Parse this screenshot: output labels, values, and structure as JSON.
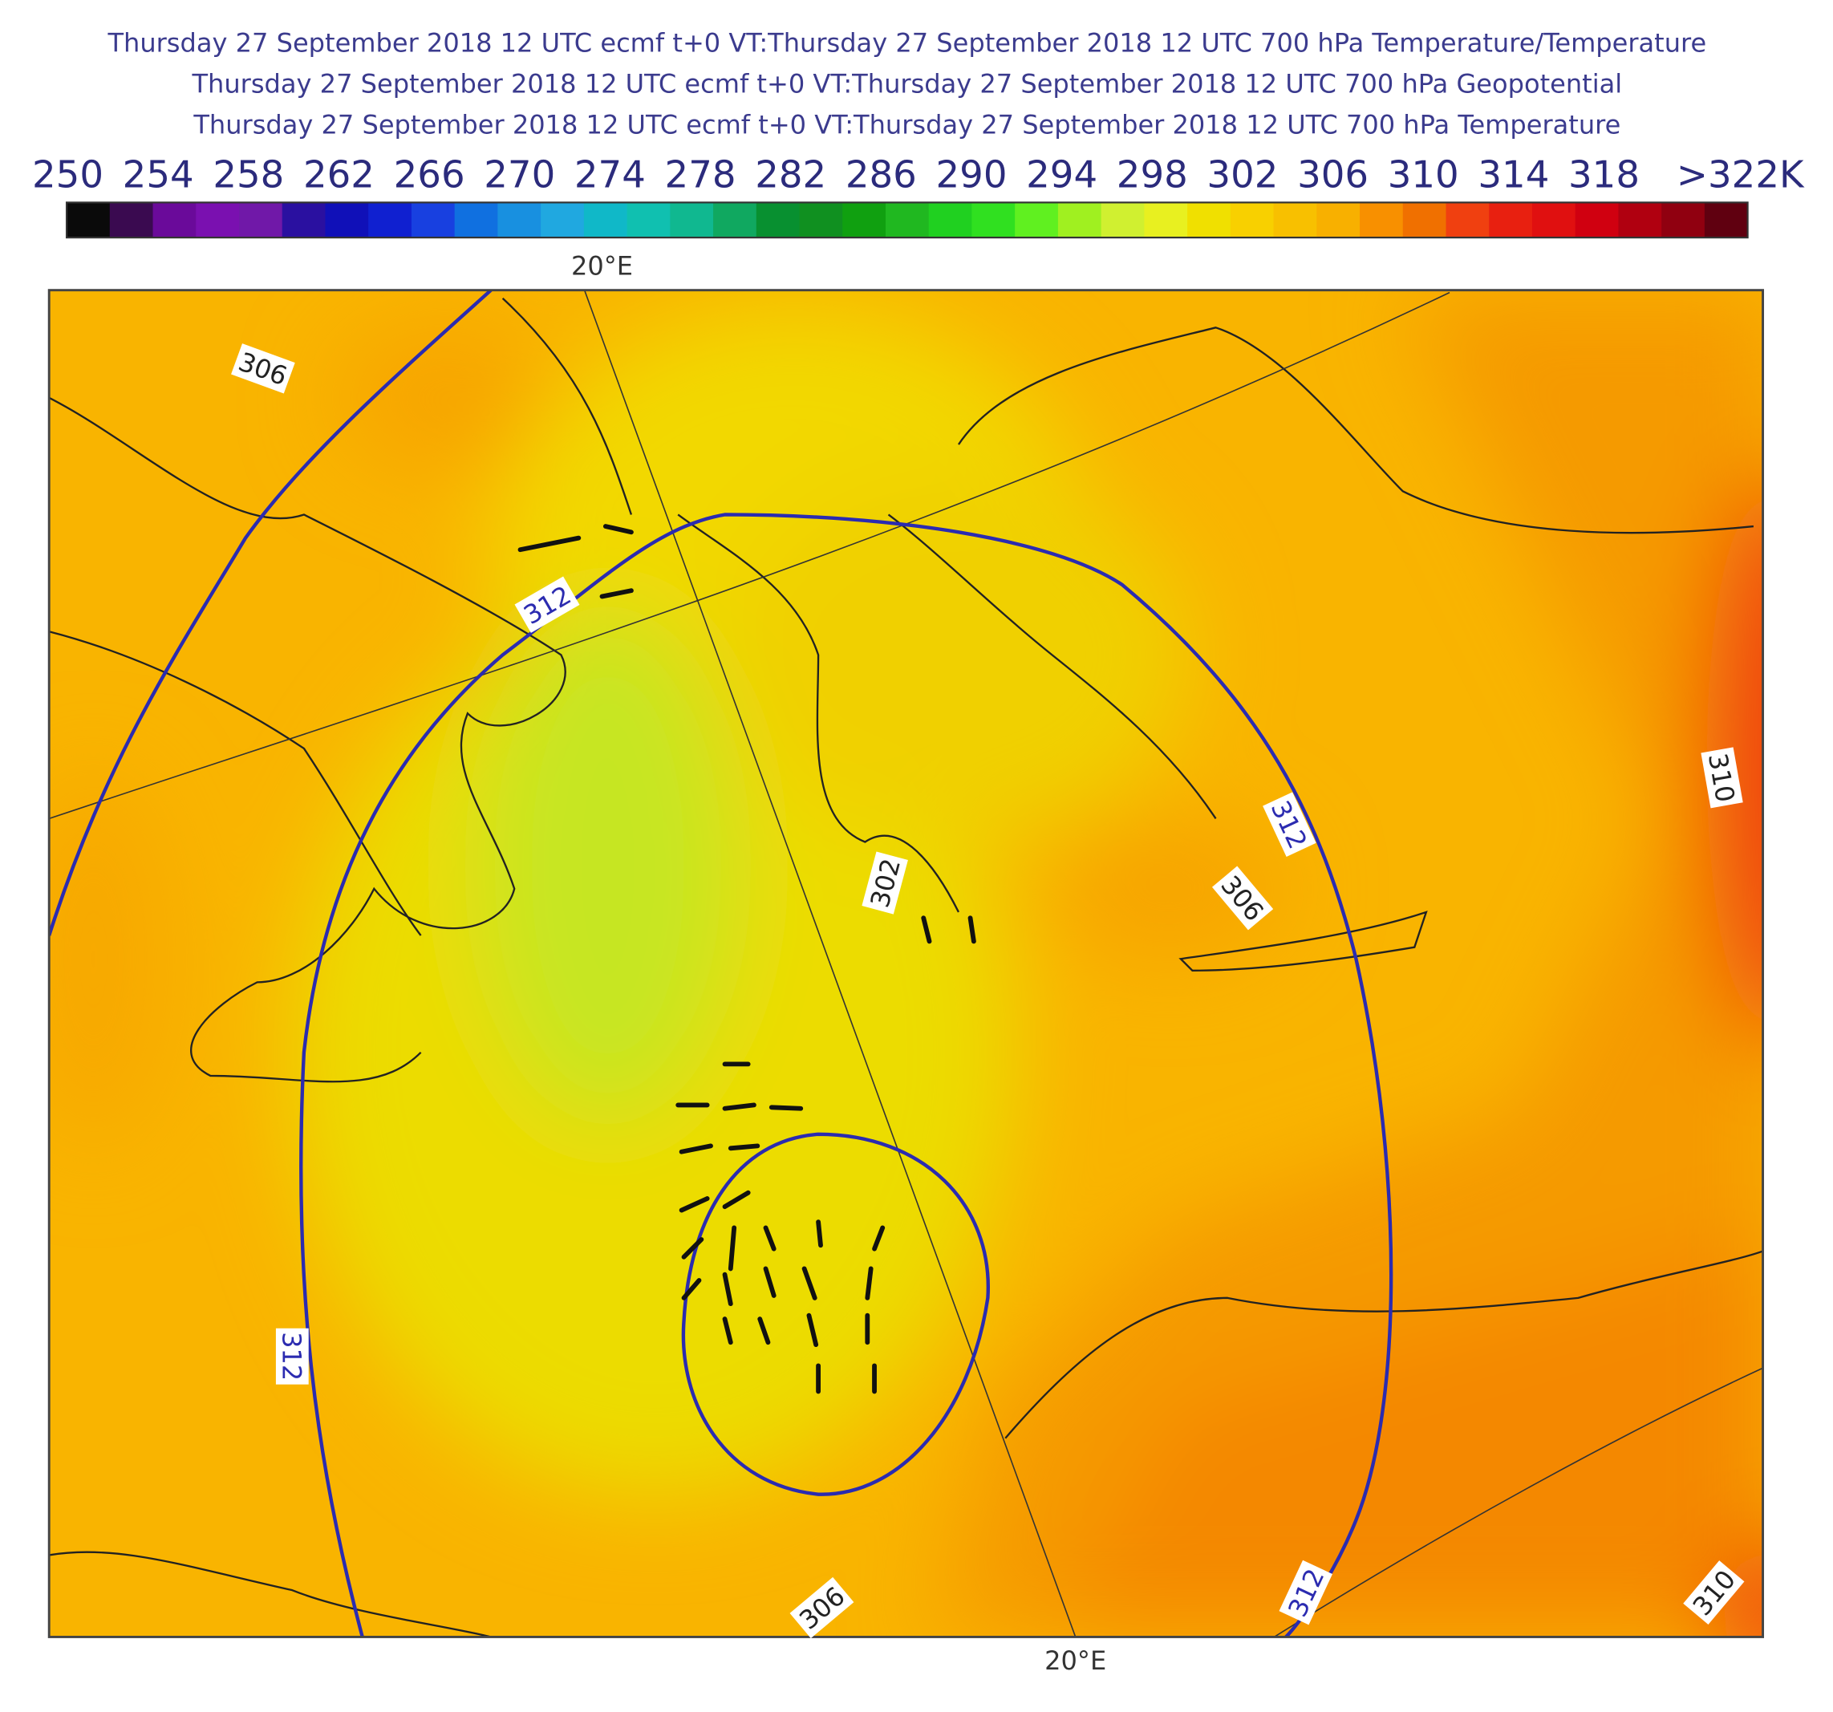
{
  "header": {
    "lines": [
      "Thursday 27 September 2018 12 UTC ecmf t+0 VT:Thursday 27 September 2018 12 UTC 700 hPa  Temperature/Temperature",
      "Thursday 27 September 2018 12 UTC ecmf t+0 VT:Thursday 27 September 2018 12 UTC 700 hPa  Geopotential",
      "Thursday 27 September 2018 12 UTC ecmf t+0 VT:Thursday 27 September 2018 12 UTC 700 hPa  Temperature"
    ]
  },
  "colorbar": {
    "labels": [
      "250",
      "254",
      "258",
      "262",
      "266",
      "270",
      "274",
      "278",
      "282",
      "286",
      "290",
      "294",
      "298",
      "302",
      "306",
      "310",
      "314",
      "318",
      ">322K"
    ],
    "colors": [
      "#0a0a0a",
      "#3a0a50",
      "#6a0a9a",
      "#7a10b0",
      "#7018a8",
      "#2a10a0",
      "#1010b8",
      "#1020d0",
      "#1840e0",
      "#1070e0",
      "#1890e0",
      "#20a8e0",
      "#10b8c8",
      "#10c0b0",
      "#10b890",
      "#10a860",
      "#089030",
      "#109020",
      "#10a010",
      "#20b820",
      "#20d020",
      "#30e020",
      "#60f020",
      "#a0f020",
      "#d0f030",
      "#e8f020",
      "#f0e000",
      "#f8d000",
      "#f8c000",
      "#f8b000",
      "#f89000",
      "#f07000",
      "#f04010",
      "#e82010",
      "#e01010",
      "#d00010",
      "#b00010",
      "#900010",
      "#600010"
    ]
  },
  "map": {
    "lon_labels": [
      "20°E",
      "20°E"
    ],
    "contour_labels": [
      "306",
      "312",
      "312",
      "302",
      "306",
      "312",
      "310",
      "306",
      "312",
      "310"
    ]
  }
}
